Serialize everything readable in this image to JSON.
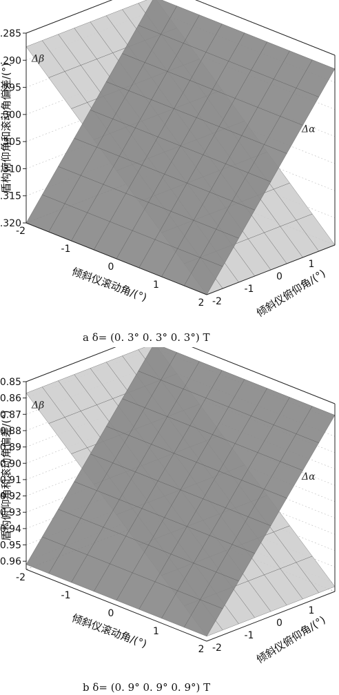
{
  "chart_data": [
    {
      "type": "surface",
      "panel": "a",
      "caption": "a δ= (0. 3°  0. 3°  0. 3°) T",
      "zlabel": "盾构俯仰角和滚动角偏差/(°)",
      "xlabel": "倾斜仪滚动角/(°)",
      "ylabel": "倾斜仪俯仰角/(°)",
      "zlim": [
        -0.32,
        -0.285
      ],
      "z_ticks": [
        "-0.285",
        "-0.290",
        "-0.295",
        "-0.300",
        "-0.305",
        "-0.310",
        "-0.315",
        "-0.320"
      ],
      "x_ticks": [
        "-2",
        "-1",
        "0",
        "1",
        "2"
      ],
      "y_ticks": [
        "-2",
        "-1",
        "0",
        "1",
        "2"
      ],
      "grid": true,
      "series": [
        {
          "name": "Δβ",
          "corners": {
            "x_-2_y_-2": -0.32,
            "x_-2_y_2": -0.2875,
            "x_2_y_-2": -0.32,
            "x_2_y_2": -0.2875
          },
          "color": "#8a8a8a"
        },
        {
          "name": "Δα",
          "corners": {
            "x_-2_y_-2": -0.2875,
            "x_-2_y_2": -0.2875,
            "x_2_y_-2": -0.32,
            "x_2_y_2": -0.32
          },
          "color": "#cfcfcf"
        }
      ]
    },
    {
      "type": "surface",
      "panel": "b",
      "caption": "b δ= (0. 9°  0. 9°  0. 9°) T",
      "zlabel": "盾构俯仰角和滚动角偏差/(°)",
      "xlabel": "倾斜仪滚动角/(°)",
      "ylabel": "倾斜仪俯仰角/(°)",
      "zlim": [
        -0.965,
        -0.85
      ],
      "z_ticks": [
        "-0.85",
        "-0.86",
        "-0.87",
        "-0.88",
        "-0.89",
        "-0.90",
        "-0.91",
        "-0.92",
        "-0.93",
        "-0.94",
        "-0.95",
        "-0.96"
      ],
      "x_ticks": [
        "-2",
        "-1",
        "0",
        "1",
        "2"
      ],
      "y_ticks": [
        "-2",
        "-1",
        "0",
        "1",
        "2"
      ],
      "grid": true,
      "series": [
        {
          "name": "Δβ",
          "corners": {
            "x_-2_y_-2": -0.962,
            "x_-2_y_2": -0.857,
            "x_2_y_-2": -0.962,
            "x_2_y_2": -0.857
          },
          "color": "#8a8a8a"
        },
        {
          "name": "Δα",
          "corners": {
            "x_-2_y_-2": -0.857,
            "x_-2_y_2": -0.857,
            "x_2_y_-2": -0.962,
            "x_2_y_2": -0.962
          },
          "color": "#cfcfcf"
        }
      ]
    }
  ]
}
